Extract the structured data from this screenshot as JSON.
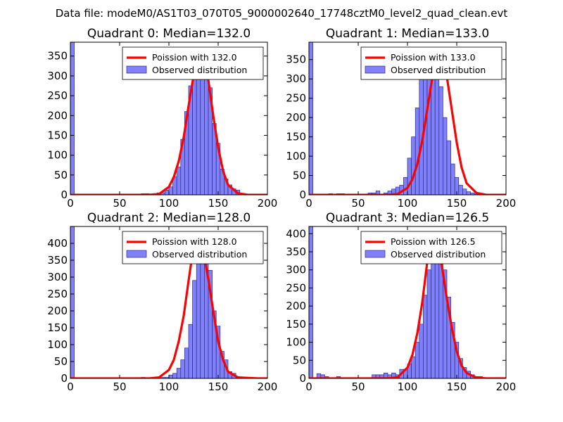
{
  "figure": {
    "suptitle": "Data file: modeM0/AS1T03_070T05_9000002640_17748cztM0_level2_quad_clean.evt"
  },
  "colors": {
    "bar_fill": "#8080f8",
    "bar_edge": "#2b2b8a",
    "poisson_line": "#ff0000",
    "axes": "#000000"
  },
  "chart_data": [
    {
      "type": "bar",
      "title": "Quadrant 0: Median=132.0",
      "median": 132.0,
      "xlim": [
        0,
        200
      ],
      "ylim": [
        0,
        385
      ],
      "xticks": [
        0,
        50,
        100,
        150,
        200
      ],
      "yticks": [
        0,
        50,
        100,
        150,
        200,
        250,
        300,
        350
      ],
      "legend": {
        "placement": "top-right",
        "entries": [
          "Poission with 132.0",
          "Observed distribution"
        ]
      },
      "bin_width": 4,
      "histogram": {
        "bin_starts": [
          0,
          4,
          8,
          12,
          16,
          20,
          24,
          28,
          32,
          36,
          40,
          44,
          48,
          52,
          56,
          60,
          64,
          68,
          72,
          76,
          80,
          84,
          88,
          92,
          96,
          100,
          104,
          108,
          112,
          116,
          120,
          124,
          128,
          132,
          136,
          140,
          144,
          148,
          152,
          156,
          160,
          164,
          168,
          172,
          176,
          180,
          184,
          188,
          192,
          196
        ],
        "counts": [
          385,
          0,
          0,
          0,
          0,
          0,
          0,
          0,
          0,
          0,
          0,
          0,
          0,
          0,
          0,
          0,
          0,
          0,
          3,
          3,
          0,
          3,
          5,
          5,
          12,
          20,
          45,
          70,
          140,
          210,
          275,
          310,
          355,
          360,
          300,
          270,
          180,
          130,
          65,
          40,
          25,
          15,
          12,
          3,
          0,
          0,
          0,
          0,
          0,
          0
        ]
      },
      "poisson_curve": {
        "x": [
          0,
          80,
          90,
          100,
          105,
          110,
          115,
          120,
          125,
          130,
          132,
          135,
          140,
          145,
          150,
          155,
          160,
          170,
          180,
          200
        ],
        "y": [
          0,
          0,
          2,
          20,
          45,
          85,
          145,
          225,
          300,
          355,
          366,
          350,
          290,
          200,
          120,
          60,
          25,
          4,
          0,
          0
        ]
      }
    },
    {
      "type": "bar",
      "title": "Quadrant 1: Median=133.0",
      "median": 133.0,
      "xlim": [
        0,
        200
      ],
      "ylim": [
        0,
        395
      ],
      "xticks": [
        0,
        50,
        100,
        150,
        200
      ],
      "yticks": [
        0,
        50,
        100,
        150,
        200,
        250,
        300,
        350
      ],
      "legend": {
        "placement": "top-right",
        "entries": [
          "Poission with 133.0",
          "Observed distribution"
        ]
      },
      "bin_width": 4,
      "histogram": {
        "bin_starts": [
          0,
          4,
          8,
          12,
          16,
          20,
          24,
          28,
          32,
          36,
          40,
          44,
          48,
          52,
          56,
          60,
          64,
          68,
          72,
          76,
          80,
          84,
          88,
          92,
          96,
          100,
          104,
          108,
          112,
          116,
          120,
          124,
          128,
          132,
          136,
          140,
          144,
          148,
          152,
          156,
          160,
          164,
          168,
          172,
          176,
          180,
          184,
          188,
          192,
          196
        ],
        "counts": [
          395,
          0,
          2,
          2,
          0,
          3,
          0,
          3,
          3,
          0,
          0,
          0,
          0,
          0,
          0,
          5,
          5,
          10,
          0,
          5,
          10,
          15,
          20,
          25,
          45,
          95,
          150,
          225,
          300,
          350,
          370,
          380,
          330,
          280,
          200,
          140,
          80,
          45,
          25,
          15,
          8,
          5,
          2,
          0,
          0,
          0,
          0,
          0,
          0,
          0
        ]
      },
      "poisson_curve": {
        "x": [
          0,
          80,
          90,
          100,
          105,
          110,
          115,
          120,
          125,
          130,
          133,
          136,
          140,
          145,
          150,
          155,
          160,
          170,
          180,
          200
        ],
        "y": [
          0,
          0,
          2,
          18,
          40,
          80,
          140,
          220,
          300,
          360,
          370,
          355,
          305,
          220,
          135,
          70,
          30,
          5,
          0,
          0
        ]
      }
    },
    {
      "type": "bar",
      "title": "Quadrant 2: Median=128.0",
      "median": 128.0,
      "xlim": [
        0,
        200
      ],
      "ylim": [
        0,
        450
      ],
      "xticks": [
        0,
        50,
        100,
        150,
        200
      ],
      "yticks": [
        0,
        50,
        100,
        150,
        200,
        250,
        300,
        350,
        400
      ],
      "legend": {
        "placement": "top-right",
        "entries": [
          "Poission with 128.0",
          "Observed distribution"
        ]
      },
      "bin_width": 4,
      "histogram": {
        "bin_starts": [
          0,
          4,
          8,
          12,
          16,
          20,
          24,
          28,
          32,
          36,
          40,
          44,
          48,
          52,
          56,
          60,
          64,
          68,
          72,
          76,
          80,
          84,
          88,
          92,
          96,
          100,
          104,
          108,
          112,
          116,
          120,
          124,
          128,
          132,
          136,
          140,
          144,
          148,
          152,
          156,
          160,
          164,
          168,
          172,
          176,
          180,
          184,
          188,
          192,
          196
        ],
        "counts": [
          450,
          0,
          0,
          0,
          0,
          0,
          0,
          0,
          0,
          0,
          0,
          0,
          0,
          0,
          0,
          0,
          0,
          0,
          3,
          0,
          0,
          0,
          0,
          3,
          3,
          10,
          15,
          30,
          55,
          90,
          160,
          290,
          390,
          410,
          380,
          320,
          200,
          155,
          80,
          55,
          20,
          15,
          5,
          3,
          0,
          0,
          0,
          0,
          0,
          0
        ]
      },
      "poisson_curve": {
        "x": [
          0,
          80,
          90,
          100,
          105,
          110,
          115,
          120,
          125,
          128,
          130,
          135,
          140,
          145,
          150,
          155,
          160,
          170,
          190,
          200
        ],
        "y": [
          0,
          0,
          3,
          25,
          55,
          110,
          185,
          290,
          390,
          430,
          420,
          375,
          295,
          200,
          110,
          55,
          20,
          3,
          0,
          0
        ]
      }
    },
    {
      "type": "bar",
      "title": "Quadrant 3: Median=126.5",
      "median": 126.5,
      "xlim": [
        0,
        200
      ],
      "ylim": [
        0,
        420
      ],
      "xticks": [
        0,
        50,
        100,
        150,
        200
      ],
      "yticks": [
        0,
        50,
        100,
        150,
        200,
        250,
        300,
        350,
        400
      ],
      "legend": {
        "placement": "top-right",
        "entries": [
          "Poission with 126.5",
          "Observed distribution"
        ]
      },
      "bin_width": 4,
      "histogram": {
        "bin_starts": [
          0,
          4,
          8,
          12,
          16,
          20,
          24,
          28,
          32,
          36,
          40,
          44,
          48,
          52,
          56,
          60,
          64,
          68,
          72,
          76,
          80,
          84,
          88,
          92,
          96,
          100,
          104,
          108,
          112,
          116,
          120,
          124,
          128,
          132,
          136,
          140,
          144,
          148,
          152,
          156,
          160,
          164,
          168,
          172,
          176,
          180,
          184,
          188,
          192,
          196
        ],
        "counts": [
          420,
          0,
          13,
          10,
          5,
          0,
          0,
          5,
          0,
          0,
          0,
          0,
          0,
          0,
          0,
          0,
          10,
          10,
          10,
          15,
          10,
          15,
          10,
          25,
          25,
          40,
          60,
          100,
          150,
          230,
          300,
          350,
          375,
          320,
          300,
          225,
          155,
          100,
          55,
          30,
          20,
          10,
          5,
          5,
          0,
          0,
          0,
          0,
          0,
          0
        ]
      },
      "poisson_curve": {
        "x": [
          0,
          80,
          90,
          100,
          105,
          110,
          115,
          120,
          124,
          126.5,
          130,
          135,
          140,
          145,
          150,
          155,
          160,
          170,
          180,
          200
        ],
        "y": [
          0,
          0,
          3,
          30,
          65,
          125,
          210,
          320,
          385,
          400,
          375,
          310,
          220,
          140,
          75,
          35,
          15,
          2,
          0,
          0
        ]
      }
    }
  ]
}
